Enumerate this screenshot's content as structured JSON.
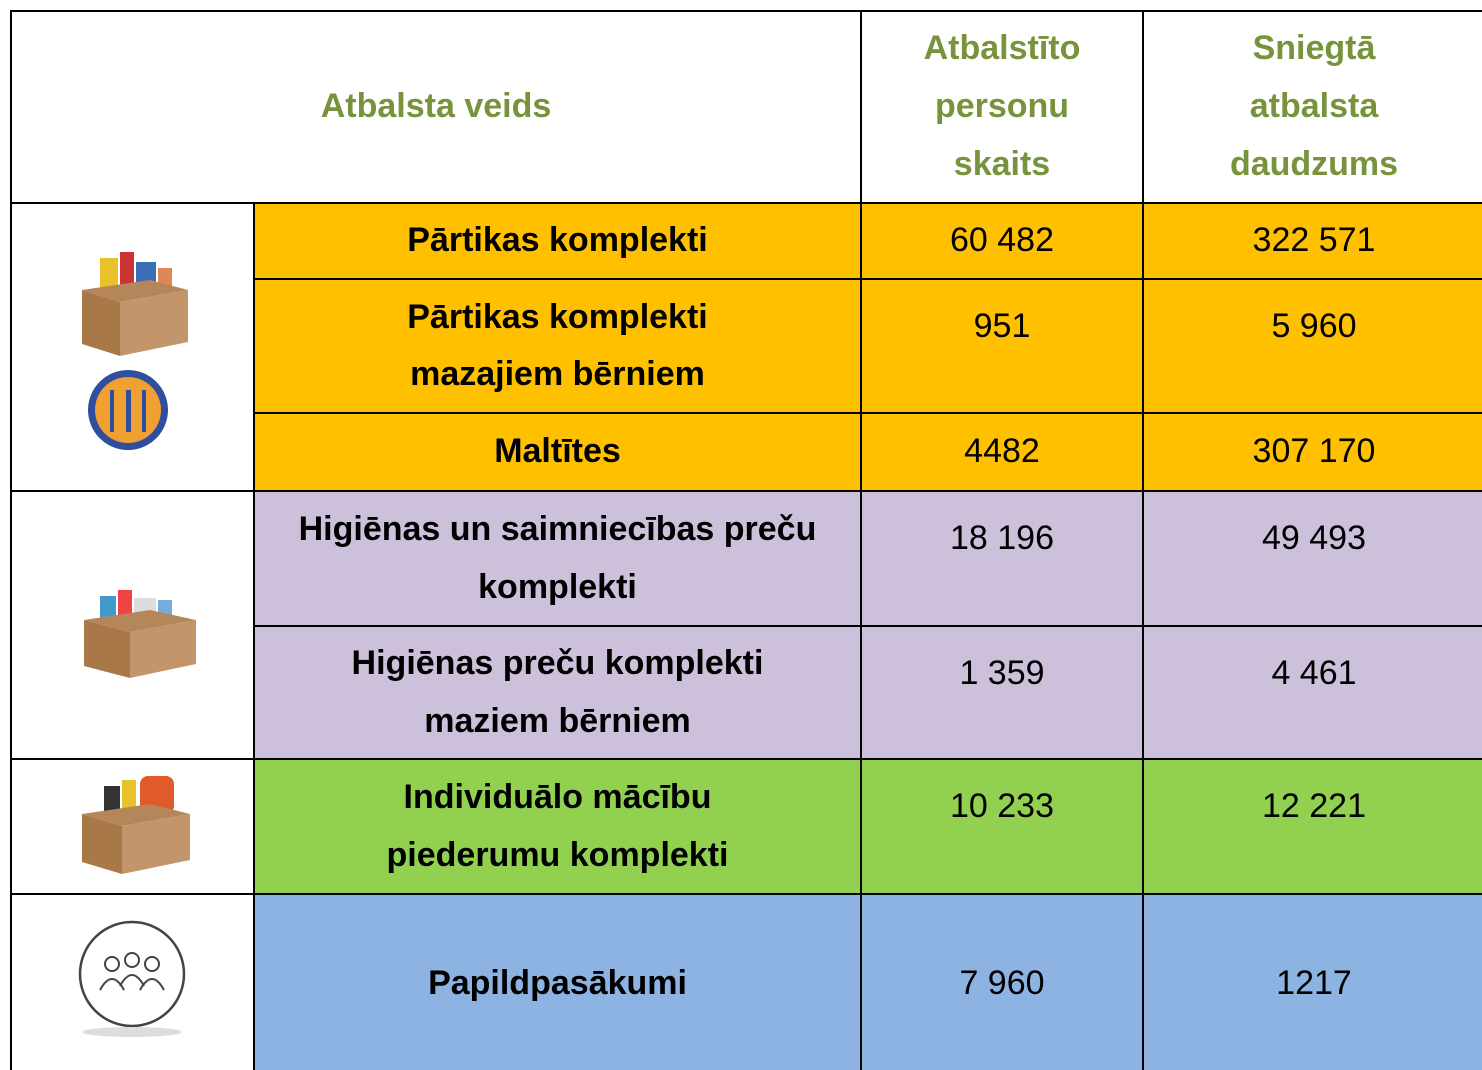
{
  "header": {
    "type": "Atbalsta veids",
    "persons": "Atbalstīto personu skaits",
    "amount": "Sniegtā atbalsta daudzums"
  },
  "rows": [
    {
      "name": "Pārtikas komplekti",
      "persons": "60 482",
      "amount": "322 571"
    },
    {
      "name": "Pārtikas komplekti mazajiem bērniem",
      "persons": "951",
      "amount": "5 960"
    },
    {
      "name": "Maltītes",
      "persons": "4482",
      "amount": "307 170"
    },
    {
      "name": "Higiēnas un saimniecības preču komplekti",
      "persons": "18 196",
      "amount": "49 493"
    },
    {
      "name": "Higiēnas preču komplekti maziem bērniem",
      "persons": "1 359",
      "amount": "4 461"
    },
    {
      "name": "Individuālo mācību piederumu komplekti",
      "persons": "10 233",
      "amount": "12 221"
    },
    {
      "name": "Papildpasākumi",
      "persons": "7 960",
      "amount": "1217"
    }
  ]
}
